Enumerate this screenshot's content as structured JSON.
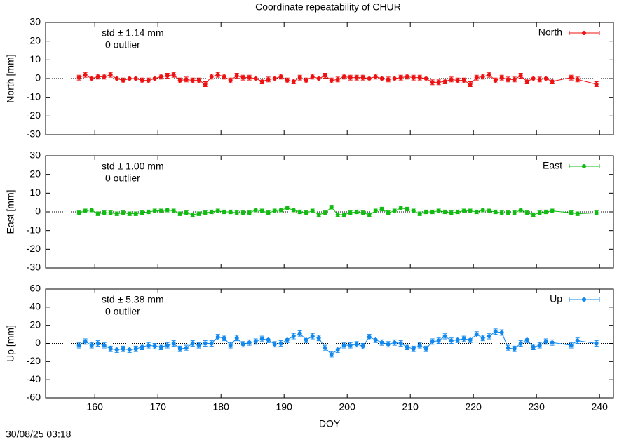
{
  "title": "Coordinate repeatability of CHUR",
  "footer": "30/08/25 03:18",
  "chart_data": [
    {
      "type": "line",
      "ylabel": "North [mm]",
      "ylim": [
        -30,
        30
      ],
      "yticks": [
        -30,
        -20,
        -10,
        0,
        10,
        20,
        30
      ],
      "xlim": [
        152.2,
        242.2
      ],
      "xticks": [
        160,
        170,
        180,
        190,
        200,
        210,
        220,
        230,
        240
      ],
      "annotations": [
        "std ± 1.14 mm",
        "0 outlier"
      ],
      "legend": "top-right",
      "x": [
        157.5,
        158.5,
        159.5,
        160.5,
        161.5,
        162.5,
        163.5,
        164.5,
        165.5,
        166.5,
        167.5,
        168.5,
        169.5,
        170.5,
        171.5,
        172.5,
        173.5,
        174.5,
        175.5,
        176.5,
        177.5,
        178.5,
        179.5,
        180.5,
        181.5,
        182.5,
        183.5,
        184.5,
        185.5,
        186.5,
        187.5,
        188.5,
        189.5,
        190.5,
        191.5,
        192.5,
        193.5,
        194.5,
        195.5,
        196.5,
        197.5,
        198.5,
        199.5,
        200.5,
        201.5,
        202.5,
        203.5,
        204.5,
        205.5,
        206.5,
        207.5,
        208.5,
        209.5,
        210.5,
        211.5,
        212.5,
        213.5,
        214.5,
        215.5,
        216.5,
        217.5,
        218.5,
        219.5,
        220.5,
        221.5,
        222.5,
        223.5,
        224.5,
        225.5,
        226.5,
        227.5,
        228.5,
        229.5,
        230.5,
        231.5,
        232.5,
        235.5,
        236.5,
        239.5
      ],
      "series": [
        {
          "name": "North",
          "color": "#ee1111",
          "error": 1.3,
          "values": [
            0.5,
            2,
            0,
            1,
            1,
            2,
            0,
            -1,
            0,
            0,
            -1,
            -1,
            0,
            1,
            1.5,
            2,
            -1,
            -0.5,
            -1,
            -1,
            -3,
            1,
            2,
            1,
            -1,
            1.5,
            0.5,
            0.5,
            0,
            -1.5,
            -0.5,
            0,
            1,
            -1,
            -1.5,
            0.5,
            -1,
            1,
            0,
            1.5,
            -1,
            -0.5,
            1,
            0.5,
            0.5,
            0.5,
            0,
            1,
            0,
            -0.5,
            0,
            0.5,
            1,
            0.5,
            0.5,
            0,
            -2,
            -2,
            -1.5,
            -0.5,
            -1,
            -1,
            -3,
            0.5,
            1,
            2,
            -1,
            0.5,
            -0.5,
            -0.5,
            1.5,
            -1.5,
            0,
            -0.5,
            0,
            -1.5,
            0.5,
            -0.5,
            -3
          ]
        }
      ]
    },
    {
      "type": "line",
      "ylabel": "East [mm]",
      "ylim": [
        -30,
        30
      ],
      "yticks": [
        -30,
        -20,
        -10,
        0,
        10,
        20,
        30
      ],
      "xlim": [
        152.2,
        242.2
      ],
      "xticks": [
        160,
        170,
        180,
        190,
        200,
        210,
        220,
        230,
        240
      ],
      "annotations": [
        "std ± 1.00 mm",
        "0 outlier"
      ],
      "legend": "top-right",
      "x": [
        157.5,
        158.5,
        159.5,
        160.5,
        161.5,
        162.5,
        163.5,
        164.5,
        165.5,
        166.5,
        167.5,
        168.5,
        169.5,
        170.5,
        171.5,
        172.5,
        173.5,
        174.5,
        175.5,
        176.5,
        177.5,
        178.5,
        179.5,
        180.5,
        181.5,
        182.5,
        183.5,
        184.5,
        185.5,
        186.5,
        187.5,
        188.5,
        189.5,
        190.5,
        191.5,
        192.5,
        193.5,
        194.5,
        195.5,
        196.5,
        197.5,
        198.5,
        199.5,
        200.5,
        201.5,
        202.5,
        203.5,
        204.5,
        205.5,
        206.5,
        207.5,
        208.5,
        209.5,
        210.5,
        211.5,
        212.5,
        213.5,
        214.5,
        215.5,
        216.5,
        217.5,
        218.5,
        219.5,
        220.5,
        221.5,
        222.5,
        223.5,
        224.5,
        225.5,
        226.5,
        227.5,
        228.5,
        229.5,
        230.5,
        231.5,
        232.5,
        235.5,
        236.5,
        239.5
      ],
      "series": [
        {
          "name": "East",
          "color": "#11bb11",
          "error": 1.0,
          "values": [
            -0.5,
            0.5,
            1,
            -1,
            -0.5,
            -0.5,
            -1,
            -0.5,
            -1,
            -1,
            -0.5,
            0,
            0.5,
            0.5,
            1,
            0.5,
            -1,
            -0.5,
            -1.5,
            -1,
            -0.5,
            0,
            0.5,
            0,
            0,
            -0.5,
            -0.5,
            -0.5,
            1,
            0.5,
            -0.5,
            0.5,
            1,
            2,
            1,
            0,
            -0.5,
            0.5,
            -1.5,
            -0.5,
            2.5,
            -1.5,
            -1.5,
            -0.5,
            0,
            -0.5,
            -1.5,
            0.5,
            1.5,
            -0.5,
            0.5,
            2,
            1.5,
            0.5,
            -1,
            0,
            0,
            0.5,
            0,
            -0.5,
            0,
            0.5,
            0.5,
            0,
            1,
            0.5,
            0,
            -0.5,
            -0.5,
            -0.5,
            1,
            -0.5,
            -1.5,
            -0.5,
            0,
            0.5,
            -0.5,
            -1,
            -0.5
          ]
        }
      ]
    },
    {
      "type": "line",
      "ylabel": "Up [mm]",
      "xlabel": "DOY",
      "ylim": [
        -60,
        60
      ],
      "yticks": [
        -60,
        -40,
        -20,
        0,
        20,
        40,
        60
      ],
      "xlim": [
        152.2,
        242.2
      ],
      "xticks": [
        160,
        170,
        180,
        190,
        200,
        210,
        220,
        230,
        240
      ],
      "annotations": [
        "std ± 5.38 mm",
        "0 outlier"
      ],
      "legend": "top-right",
      "x": [
        157.5,
        158.5,
        159.5,
        160.5,
        161.5,
        162.5,
        163.5,
        164.5,
        165.5,
        166.5,
        167.5,
        168.5,
        169.5,
        170.5,
        171.5,
        172.5,
        173.5,
        174.5,
        175.5,
        176.5,
        177.5,
        178.5,
        179.5,
        180.5,
        181.5,
        182.5,
        183.5,
        184.5,
        185.5,
        186.5,
        187.5,
        188.5,
        189.5,
        190.5,
        191.5,
        192.5,
        193.5,
        194.5,
        195.5,
        196.5,
        197.5,
        198.5,
        199.5,
        200.5,
        201.5,
        202.5,
        203.5,
        204.5,
        205.5,
        206.5,
        207.5,
        208.5,
        209.5,
        210.5,
        211.5,
        212.5,
        213.5,
        214.5,
        215.5,
        216.5,
        217.5,
        218.5,
        219.5,
        220.5,
        221.5,
        222.5,
        223.5,
        224.5,
        225.5,
        226.5,
        227.5,
        228.5,
        229.5,
        230.5,
        231.5,
        232.5,
        235.5,
        236.5,
        239.5
      ],
      "series": [
        {
          "name": "Up",
          "color": "#1188ee",
          "error": 3,
          "values": [
            -2,
            2,
            -2,
            0,
            -2,
            -6,
            -7,
            -6,
            -7,
            -6,
            -4,
            -2,
            -3,
            -4,
            -2,
            0,
            -6,
            -5,
            0,
            -2,
            0,
            0,
            7,
            6,
            -2,
            6,
            -1,
            1,
            2,
            5,
            4,
            -1,
            0,
            4,
            8,
            11,
            4,
            8,
            6,
            -5,
            -12,
            -7,
            -2,
            -2,
            -1,
            -3,
            7,
            4,
            1,
            -1,
            1,
            0,
            -4,
            -6,
            -2,
            -6,
            2,
            3,
            8,
            3,
            4,
            5,
            4,
            10,
            6,
            8,
            13,
            12,
            -5,
            -6,
            0,
            4,
            -4,
            -2,
            2,
            1,
            -2,
            3,
            0
          ]
        }
      ]
    }
  ]
}
